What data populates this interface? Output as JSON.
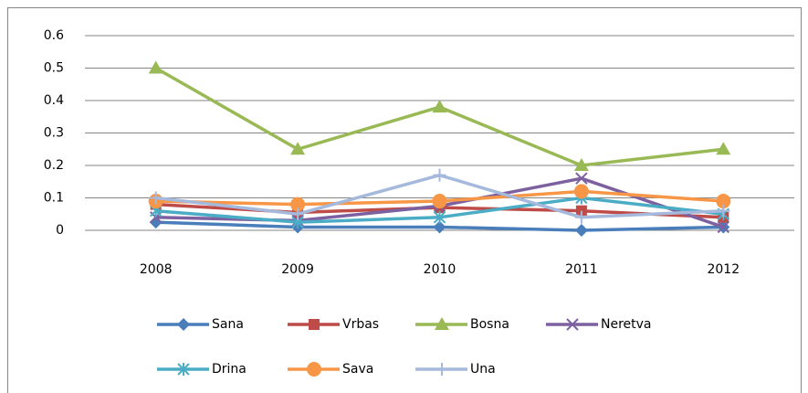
{
  "chart_data": {
    "type": "line",
    "categories": [
      "2008",
      "2009",
      "2010",
      "2011",
      "2012"
    ],
    "series": [
      {
        "name": "Sana",
        "color": "#4a7ebb",
        "marker": "diamond",
        "values": [
          0.025,
          0.01,
          0.01,
          0,
          0.01
        ]
      },
      {
        "name": "Vrbas",
        "color": "#be4b48",
        "marker": "square",
        "values": [
          0.08,
          0.055,
          0.07,
          0.06,
          0.04
        ]
      },
      {
        "name": "Bosna",
        "color": "#98b954",
        "marker": "triangle",
        "values": [
          0.5,
          0.25,
          0.38,
          0.2,
          0.25
        ]
      },
      {
        "name": "Neretva",
        "color": "#7d60a0",
        "marker": "x",
        "values": [
          0.04,
          0.03,
          0.075,
          0.16,
          0.01
        ]
      },
      {
        "name": "Drina",
        "color": "#4bacc6",
        "marker": "star",
        "values": [
          0.06,
          0.025,
          0.04,
          0.1,
          0.05
        ]
      },
      {
        "name": "Sava",
        "color": "#f79646",
        "marker": "circle",
        "values": [
          0.09,
          0.08,
          0.09,
          0.12,
          0.09
        ]
      },
      {
        "name": "Una",
        "color": "#a5b9dc",
        "marker": "plus",
        "values": [
          0.1,
          0.05,
          0.17,
          0.04,
          0.06
        ]
      }
    ],
    "ylim": [
      0,
      0.6
    ],
    "yticks": [
      0,
      0.1,
      0.2,
      0.3,
      0.4,
      0.5,
      0.6
    ],
    "grid": true,
    "legend": "bottom"
  }
}
